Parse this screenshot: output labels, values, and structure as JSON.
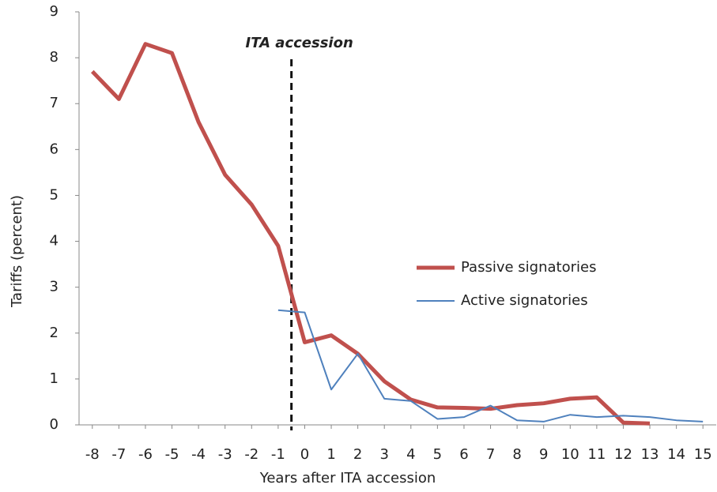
{
  "chart_data": {
    "type": "line",
    "x_label": "Years after ITA accession",
    "y_label": "Tariffs (percent)",
    "x": [
      -8,
      -7,
      -6,
      -5,
      -4,
      -3,
      -2,
      -1,
      0,
      1,
      2,
      3,
      4,
      5,
      6,
      7,
      8,
      9,
      10,
      11,
      12,
      13,
      14,
      15
    ],
    "series": [
      {
        "name": "Passive signatories",
        "color": "#c0504d",
        "width": 5,
        "values": [
          7.7,
          7.1,
          8.3,
          8.1,
          6.6,
          5.45,
          4.8,
          3.9,
          1.8,
          1.95,
          1.55,
          0.95,
          0.55,
          0.38,
          0.37,
          0.35,
          0.43,
          0.47,
          0.57,
          0.6,
          0.05,
          0.03,
          null,
          null
        ]
      },
      {
        "name": "Active signatories",
        "color": "#4f81bd",
        "width": 2,
        "values": [
          null,
          null,
          null,
          null,
          null,
          null,
          null,
          2.5,
          2.45,
          0.77,
          1.55,
          0.57,
          0.52,
          0.13,
          0.17,
          0.42,
          0.1,
          0.07,
          0.22,
          0.17,
          0.2,
          0.17,
          0.1,
          0.07
        ]
      }
    ],
    "annotation": {
      "text": "ITA accession",
      "x": -0.5
    },
    "xlim": [
      -8.5,
      15.5
    ],
    "xticks": [
      -8,
      -7,
      -6,
      -5,
      -4,
      -3,
      -2,
      -1,
      0,
      1,
      2,
      3,
      4,
      5,
      6,
      7,
      8,
      9,
      10,
      11,
      12,
      13,
      14,
      15
    ],
    "ylim": [
      0,
      9
    ],
    "yticks": [
      0,
      1,
      2,
      3,
      4,
      5,
      6,
      7,
      8,
      9
    ],
    "grid": false,
    "legend": "center right"
  }
}
